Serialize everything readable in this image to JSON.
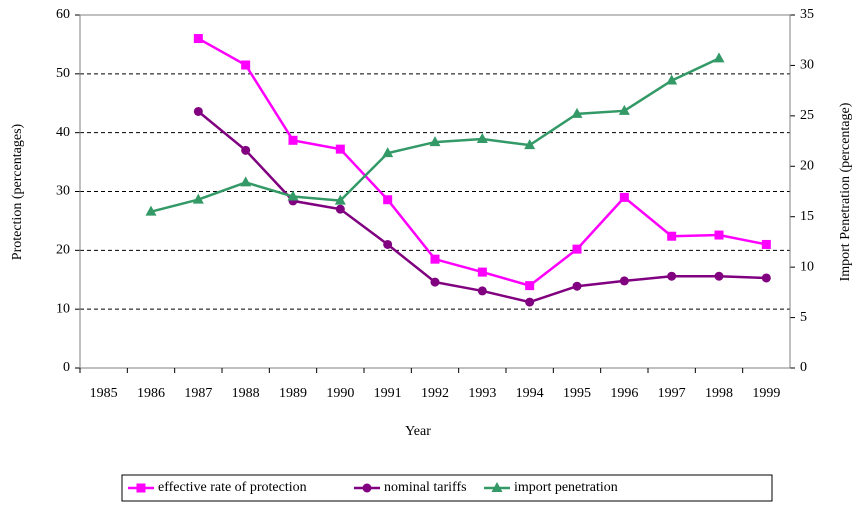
{
  "chart_data": {
    "type": "line",
    "x_label": "Year",
    "y_label": "Protection (percentages)",
    "y2_label": "Import Penetration (percentage)",
    "categories": [
      "1985",
      "1986",
      "1987",
      "1988",
      "1989",
      "1990",
      "1991",
      "1992",
      "1993",
      "1994",
      "1995",
      "1996",
      "1997",
      "1998",
      "1999"
    ],
    "series": [
      {
        "name": "effective rate of protection",
        "color": "#ff00ff",
        "marker": "square",
        "values": [
          null,
          null,
          56,
          51.5,
          38.7,
          37.2,
          28.6,
          18.5,
          16.3,
          14,
          20.2,
          29,
          22.4,
          22.6,
          21
        ]
      },
      {
        "name": "nominal tariffs",
        "color": "#800080",
        "marker": "circle",
        "values": [
          null,
          null,
          43.6,
          37,
          28.4,
          27,
          21,
          14.6,
          13.1,
          11.2,
          13.9,
          14.8,
          15.6,
          15.6,
          15.3
        ]
      },
      {
        "name": "import penetration",
        "color": "#339966",
        "marker": "triangle",
        "axis": "y2",
        "values": [
          null,
          15.5,
          16.7,
          18.4,
          17,
          16.6,
          21.3,
          22.4,
          22.7,
          22.1,
          25.2,
          25.5,
          28.5,
          30.7,
          null
        ]
      }
    ],
    "ylim": [
      0,
      60
    ],
    "yticks": [
      0,
      10,
      20,
      30,
      40,
      50,
      60
    ],
    "y2lim": [
      0,
      35
    ],
    "y2ticks": [
      0,
      5,
      10,
      15,
      20,
      25,
      30,
      35
    ],
    "grid": true,
    "legend": "bottom"
  }
}
